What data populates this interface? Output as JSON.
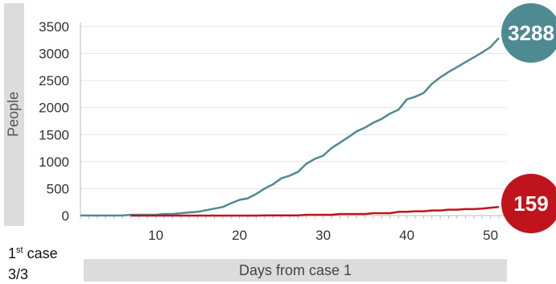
{
  "chart_data": {
    "type": "line",
    "title": "",
    "xlabel": "Days from case 1",
    "ylabel": "People",
    "xlim": [
      1,
      51
    ],
    "ylim": [
      0,
      3500
    ],
    "xticks": [
      10,
      20,
      30,
      40,
      50
    ],
    "yticks": [
      0,
      500,
      1000,
      1500,
      2000,
      2500,
      3000,
      3500
    ],
    "grid": "horizontal",
    "series": [
      {
        "color": "#4f8a92",
        "end_label": "3288",
        "x": [
          1,
          2,
          3,
          4,
          5,
          6,
          7,
          8,
          9,
          10,
          11,
          12,
          13,
          14,
          15,
          16,
          17,
          18,
          19,
          20,
          21,
          22,
          23,
          24,
          25,
          26,
          27,
          28,
          29,
          30,
          31,
          32,
          33,
          34,
          35,
          36,
          37,
          38,
          39,
          40,
          41,
          42,
          43,
          44,
          45,
          46,
          47,
          48,
          49,
          50,
          51
        ],
        "values": [
          1,
          1,
          1,
          1,
          1,
          1,
          15,
          15,
          15,
          15,
          30,
          30,
          45,
          60,
          70,
          100,
          130,
          160,
          230,
          290,
          320,
          400,
          500,
          580,
          690,
          740,
          810,
          960,
          1050,
          1110,
          1250,
          1350,
          1450,
          1560,
          1630,
          1720,
          1790,
          1890,
          1960,
          2150,
          2200,
          2270,
          2440,
          2560,
          2660,
          2750,
          2840,
          2930,
          3020,
          3120,
          3288
        ]
      },
      {
        "color": "#c0141c",
        "end_label": "159",
        "x": [
          7,
          8,
          9,
          10,
          11,
          12,
          13,
          14,
          15,
          16,
          17,
          18,
          19,
          20,
          21,
          22,
          23,
          24,
          25,
          26,
          27,
          28,
          29,
          30,
          31,
          32,
          33,
          34,
          35,
          36,
          37,
          38,
          39,
          40,
          41,
          42,
          43,
          44,
          45,
          46,
          47,
          48,
          49,
          50,
          51
        ],
        "values": [
          0,
          0,
          0,
          0,
          0,
          0,
          0,
          0,
          0,
          0,
          0,
          0,
          0,
          0,
          0,
          0,
          3,
          3,
          3,
          3,
          3,
          15,
          15,
          15,
          15,
          30,
          30,
          30,
          30,
          45,
          45,
          45,
          70,
          70,
          80,
          80,
          95,
          95,
          110,
          110,
          120,
          120,
          130,
          145,
          159
        ]
      }
    ]
  },
  "annotation": {
    "first_case_prefix": "1",
    "first_case_sup": "st",
    "first_case_suffix": " case",
    "first_case_date": "3/3"
  }
}
